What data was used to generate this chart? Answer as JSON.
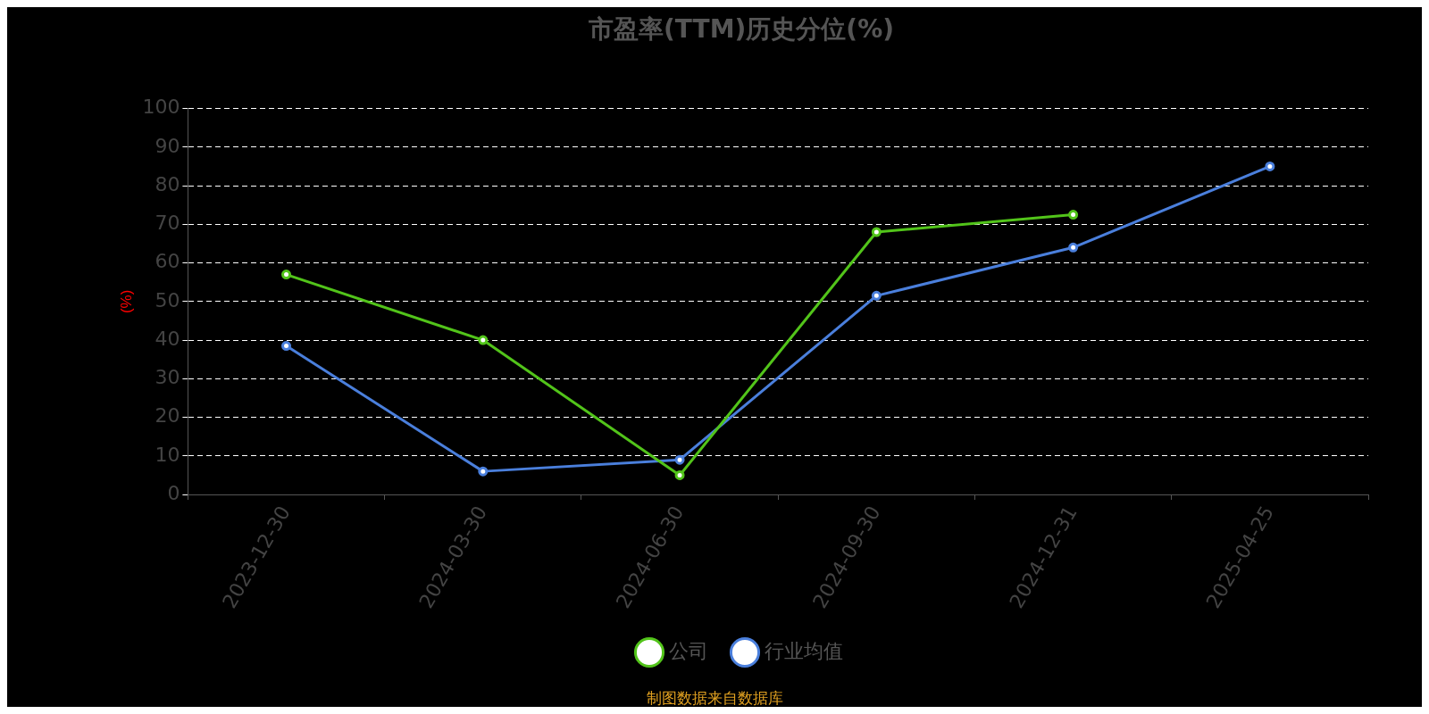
{
  "chart_data": {
    "type": "line",
    "title": "市盈率(TTM)历史分位(%)",
    "ylabel": "(%)",
    "categories": [
      "2023-12-30",
      "2024-03-30",
      "2024-06-30",
      "2024-09-30",
      "2024-12-31",
      "2025-04-25"
    ],
    "series": [
      {
        "name": "公司",
        "color": "#52c41a",
        "values": [
          57,
          40,
          5,
          68,
          72.5,
          null
        ]
      },
      {
        "name": "行业均值",
        "color": "#4a7fdc",
        "values": [
          38.5,
          6,
          9,
          51.5,
          64,
          85
        ]
      }
    ],
    "ylim": [
      0,
      100
    ],
    "yticks": [
      0,
      10,
      20,
      30,
      40,
      50,
      60,
      70,
      80,
      90,
      100
    ],
    "grid": "y",
    "legend": "bottom",
    "marker": "circle",
    "line_style": "solid",
    "annotations": [
      "制图数据来自数据库"
    ]
  }
}
